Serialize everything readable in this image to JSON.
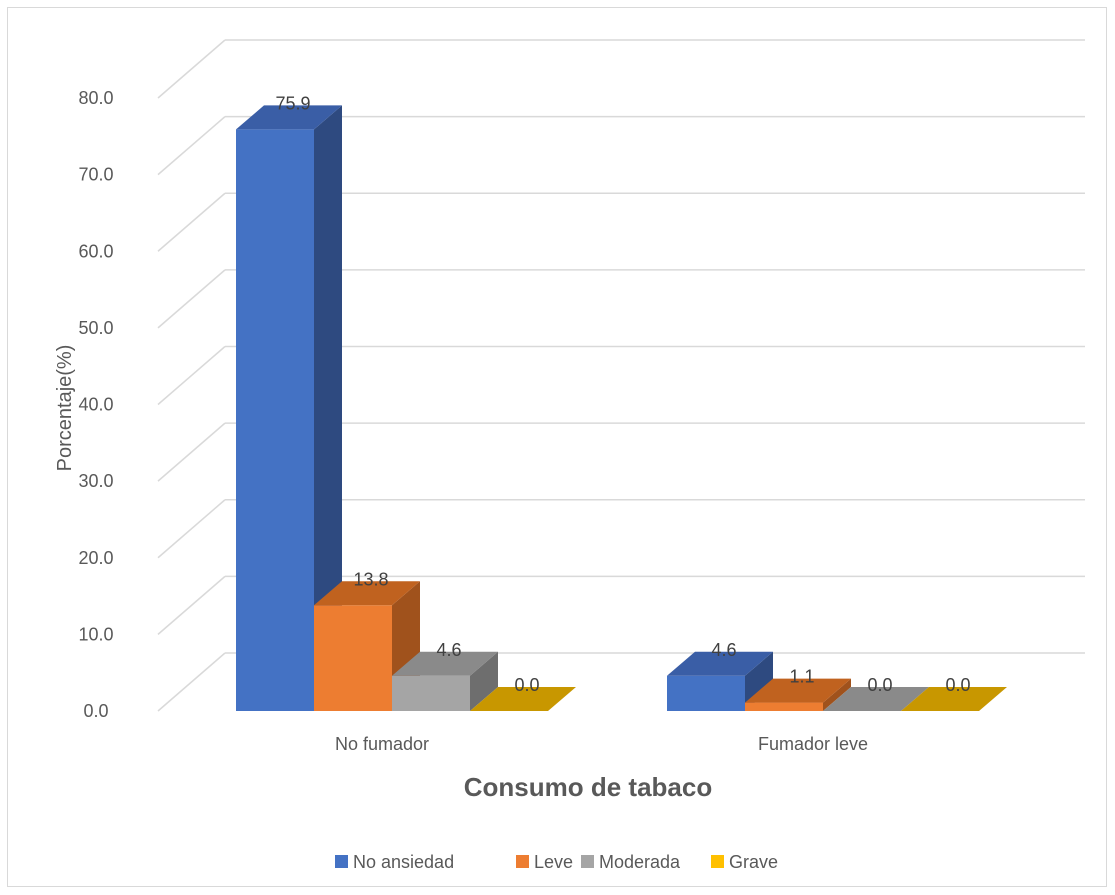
{
  "chart_data": {
    "type": "bar",
    "categories": [
      "No fumador",
      "Fumador leve"
    ],
    "series": [
      {
        "name": "No ansiedad",
        "values": [
          75.9,
          4.6
        ],
        "color": "#4472C4",
        "side": "#2E4A80",
        "top": "#3A5EA6"
      },
      {
        "name": "Leve",
        "values": [
          13.8,
          1.1
        ],
        "color": "#ED7D31",
        "side": "#A0521C",
        "top": "#C0621F"
      },
      {
        "name": "Moderada",
        "values": [
          4.6,
          0.0
        ],
        "color": "#A5A5A5",
        "side": "#6E6E6E",
        "top": "#8A8A8A"
      },
      {
        "name": "Grave",
        "values": [
          0.0,
          0.0
        ],
        "color": "#FFC000",
        "side": "#A07800",
        "top": "#C89700"
      }
    ],
    "value_labels": [
      [
        "75.9",
        "4.6"
      ],
      [
        "13.8",
        "1.1"
      ],
      [
        "4.6",
        "0.0"
      ],
      [
        "0.0",
        "0.0"
      ]
    ],
    "y_ticks": [
      "0.0",
      "10.0",
      "20.0",
      "30.0",
      "40.0",
      "50.0",
      "60.0",
      "70.0",
      "80.0"
    ],
    "ylim": [
      0,
      80
    ],
    "xlabel": "Consumo de tabaco",
    "ylabel": "Porcentaje(%)",
    "grid": true,
    "legend_position": "bottom",
    "style": "3d-clustered-column"
  }
}
